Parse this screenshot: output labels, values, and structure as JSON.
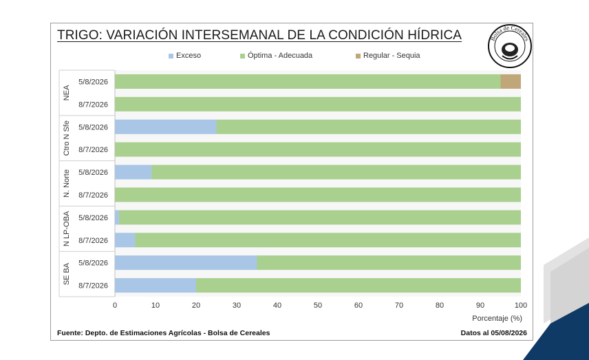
{
  "title": "TRIGO: VARIACIÓN INTERSEMANAL DE LA CONDICIÓN HÍDRICA",
  "footer": {
    "source": "Fuente: Depto. de Estimaciones Agrícolas - Bolsa de Cereales",
    "date": "Datos al 05/08/2026"
  },
  "seal_text": "Bolsa de Cereales",
  "colors": {
    "exceso": "#a9c6e6",
    "optima": "#a9d08e",
    "regular": "#bfa77a"
  },
  "chart_data": {
    "type": "bar",
    "orientation": "horizontal",
    "stacked": true,
    "xlabel": "Porcentaje (%)",
    "xlim": [
      0,
      100
    ],
    "xticks": [
      0,
      10,
      20,
      30,
      40,
      50,
      60,
      70,
      80,
      90,
      100
    ],
    "legend_position": "top",
    "groups": [
      {
        "name": "NEA",
        "rows": [
          {
            "label": "5/8/2026",
            "exceso": 0,
            "optima": 95,
            "regular": 5
          },
          {
            "label": "8/7/2026",
            "exceso": 0,
            "optima": 100,
            "regular": 0
          }
        ]
      },
      {
        "name": "Ctro N Sfe",
        "rows": [
          {
            "label": "5/8/2026",
            "exceso": 25,
            "optima": 75,
            "regular": 0
          },
          {
            "label": "8/7/2026",
            "exceso": 0,
            "optima": 100,
            "regular": 0
          }
        ]
      },
      {
        "name": "N. Norte",
        "rows": [
          {
            "label": "5/8/2026",
            "exceso": 9,
            "optima": 91,
            "regular": 0
          },
          {
            "label": "8/7/2026",
            "exceso": 0,
            "optima": 100,
            "regular": 0
          }
        ]
      },
      {
        "name": "N LP-OBA",
        "rows": [
          {
            "label": "5/8/2026",
            "exceso": 1,
            "optima": 99,
            "regular": 0
          },
          {
            "label": "8/7/2026",
            "exceso": 5,
            "optima": 95,
            "regular": 0
          }
        ]
      },
      {
        "name": "SE BA",
        "rows": [
          {
            "label": "5/8/2026",
            "exceso": 35,
            "optima": 65,
            "regular": 0
          },
          {
            "label": "8/7/2026",
            "exceso": 20,
            "optima": 80,
            "regular": 0
          }
        ]
      }
    ],
    "series": [
      {
        "key": "exceso",
        "name": "Exceso"
      },
      {
        "key": "optima",
        "name": "Óptima - Adecuada"
      },
      {
        "key": "regular",
        "name": "Regular - Sequia"
      }
    ]
  }
}
